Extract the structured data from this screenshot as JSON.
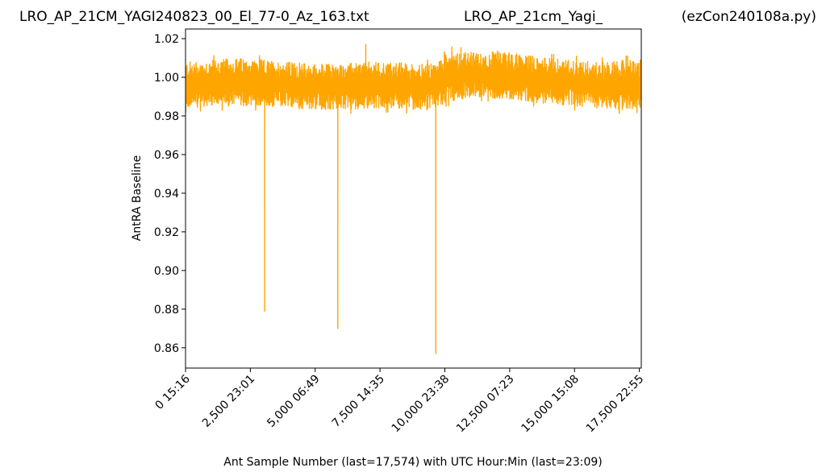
{
  "chart_data": {
    "type": "line",
    "titles": {
      "left": "LRO_AP_21CM_YAGI240823_00_El_77-0_Az_163.txt",
      "center": "LRO_AP_21cm_Yagi_",
      "right": "(ezCon240108a.py)"
    },
    "xlabel": "Ant Sample Number (last=17,574) with UTC Hour:Min (last=23:09)",
    "ylabel": "AntRA Baseline",
    "xlim": [
      0,
      17574
    ],
    "ylim": [
      0.8495,
      1.025
    ],
    "x_ticks": [
      {
        "value": 0,
        "label": "0  15:16"
      },
      {
        "value": 2500,
        "label": "2,500  23:01"
      },
      {
        "value": 5000,
        "label": "5,000  06:49"
      },
      {
        "value": 7500,
        "label": "7,500  14:35"
      },
      {
        "value": 10000,
        "label": "10,000  23:38"
      },
      {
        "value": 12500,
        "label": "12,500  07:23"
      },
      {
        "value": 15000,
        "label": "15,000  15:08"
      },
      {
        "value": 17500,
        "label": "17,500  22:55"
      }
    ],
    "y_ticks": [
      {
        "value": 0.86,
        "label": "0.86"
      },
      {
        "value": 0.88,
        "label": "0.88"
      },
      {
        "value": 0.9,
        "label": "0.90"
      },
      {
        "value": 0.92,
        "label": "0.92"
      },
      {
        "value": 0.94,
        "label": "0.94"
      },
      {
        "value": 0.96,
        "label": "0.96"
      },
      {
        "value": 0.98,
        "label": "0.98"
      },
      {
        "value": 1.0,
        "label": "1.00"
      },
      {
        "value": 1.02,
        "label": "1.02"
      }
    ],
    "grid": false,
    "series": [
      {
        "color": "#ffa500",
        "band": {
          "x": [
            0,
            1000,
            2000,
            3000,
            4000,
            5000,
            6000,
            7000,
            8000,
            9000,
            9700,
            10000,
            11000,
            11500,
            12000,
            13000,
            14000,
            15000,
            16000,
            17000,
            17574
          ],
          "center": [
            0.996,
            0.997,
            0.997,
            0.997,
            0.996,
            0.995,
            0.995,
            0.996,
            0.996,
            0.995,
            0.995,
            1.0,
            1.001,
            1.002,
            1.0,
            0.999,
            0.998,
            0.997,
            0.996,
            0.995,
            0.996
          ],
          "low": [
            0.984,
            0.985,
            0.985,
            0.985,
            0.984,
            0.983,
            0.983,
            0.984,
            0.984,
            0.983,
            0.983,
            0.987,
            0.989,
            0.99,
            0.989,
            0.988,
            0.986,
            0.985,
            0.984,
            0.983,
            0.984
          ],
          "high": [
            1.008,
            1.009,
            1.01,
            1.009,
            1.008,
            1.007,
            1.007,
            1.008,
            1.008,
            1.007,
            1.007,
            1.014,
            1.013,
            1.012,
            1.014,
            1.012,
            1.01,
            1.009,
            1.008,
            1.009,
            1.009
          ]
        },
        "spikes": [
          {
            "x": 3050,
            "y": 0.879
          },
          {
            "x": 5870,
            "y": 0.87
          },
          {
            "x": 6950,
            "y": 1.017
          },
          {
            "x": 9650,
            "y": 0.857
          }
        ]
      }
    ]
  }
}
